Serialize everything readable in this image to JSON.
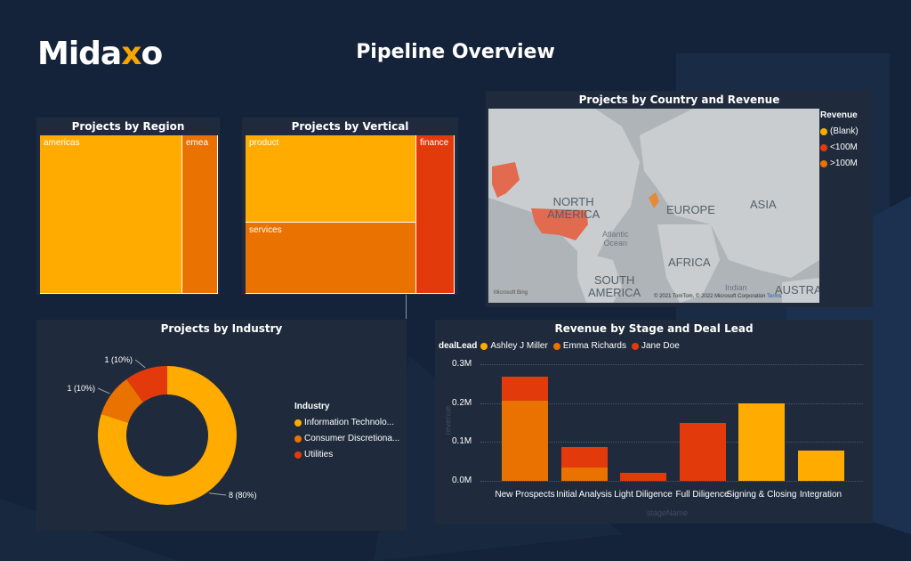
{
  "logo": {
    "text_prefix": "Mida",
    "text_accent": "x",
    "text_suffix": "o"
  },
  "page": {
    "title": "Pipeline Overview"
  },
  "colors": {
    "amber": "#ffab00",
    "orange": "#e97200",
    "red": "#e33a0b",
    "background": "#14233a",
    "panel": "#1f2b3c"
  },
  "region_card": {
    "title": "Projects by Region",
    "items": [
      {
        "label": "americas"
      },
      {
        "label": "emea"
      }
    ]
  },
  "vertical_card": {
    "title": "Projects by Vertical",
    "items": [
      {
        "label": "product"
      },
      {
        "label": "services"
      },
      {
        "label": "finance"
      }
    ]
  },
  "map_card": {
    "title": "Projects by Country and Revenue",
    "labels": {
      "north_america": "NORTH\nAMERICA",
      "europe": "EUROPE",
      "asia": "ASIA",
      "africa": "AFRICA",
      "south_america": "SOUTH\nAMERICA",
      "atlantic": "Atlantic\nOcean",
      "indian": "Indian",
      "austra": "AUSTRA"
    },
    "attribution": "© 2021 TomTom, © 2022 Microsoft Corporation",
    "terms": "Terms",
    "bing": "Microsoft Bing",
    "legend": {
      "title": "Revenue",
      "items": [
        {
          "label": "(Blank)",
          "color": "#ffab00"
        },
        {
          "label": "<100M",
          "color": "#e33a0b"
        },
        {
          "label": ">100M",
          "color": "#e97200"
        }
      ]
    }
  },
  "industry_card": {
    "title": "Projects by Industry",
    "legend_title": "Industry",
    "legend_items": [
      {
        "label": "Information Technolo...",
        "color": "#ffab00"
      },
      {
        "label": "Consumer Discretiona...",
        "color": "#e97200"
      },
      {
        "label": "Utilities",
        "color": "#e33a0b"
      }
    ],
    "slice_labels": [
      "8 (80%)",
      "1 (10%)",
      "1 (10%)"
    ]
  },
  "revenue_card": {
    "title": "Revenue by Stage and Deal Lead",
    "legend_title": "dealLead",
    "legend_items": [
      {
        "label": "Ashley J Miller",
        "color": "#ffab00"
      },
      {
        "label": "Emma Richards",
        "color": "#e97200"
      },
      {
        "label": "Jane Doe",
        "color": "#e33a0b"
      }
    ],
    "xlabel": "stageName",
    "ylabel": "revenue"
  },
  "chart_data": [
    {
      "type": "treemap",
      "title": "Projects by Region",
      "categories": [
        "americas",
        "emea"
      ],
      "values": [
        8,
        2
      ]
    },
    {
      "type": "treemap",
      "title": "Projects by Vertical",
      "categories": [
        "product",
        "services",
        "finance"
      ],
      "values": [
        5,
        4,
        1
      ]
    },
    {
      "type": "pie",
      "title": "Projects by Industry",
      "categories": [
        "Information Technolo...",
        "Consumer Discretiona...",
        "Utilities"
      ],
      "values": [
        8,
        1,
        1
      ],
      "percent_labels": [
        "80%",
        "10%",
        "10%"
      ]
    },
    {
      "type": "bar",
      "title": "Revenue by Stage and Deal Lead",
      "stacked": true,
      "categories": [
        "New Prospects",
        "Initial Analysis",
        "Light Diligence",
        "Full Diligence",
        "Signing & Closing",
        "Integration"
      ],
      "series": [
        {
          "name": "Ashley J Miller",
          "values": [
            0,
            0,
            0,
            0,
            0.2,
            0.077
          ]
        },
        {
          "name": "Emma Richards",
          "values": [
            0.205,
            0.035,
            0,
            0,
            0,
            0
          ]
        },
        {
          "name": "Jane Doe",
          "values": [
            0.063,
            0.053,
            0.02,
            0.15,
            0,
            0
          ]
        }
      ],
      "yticks": [
        "0.0M",
        "0.1M",
        "0.2M",
        "0.3M"
      ],
      "ylim": [
        0,
        0.3
      ],
      "xlabel": "stageName",
      "ylabel": "revenue"
    }
  ]
}
